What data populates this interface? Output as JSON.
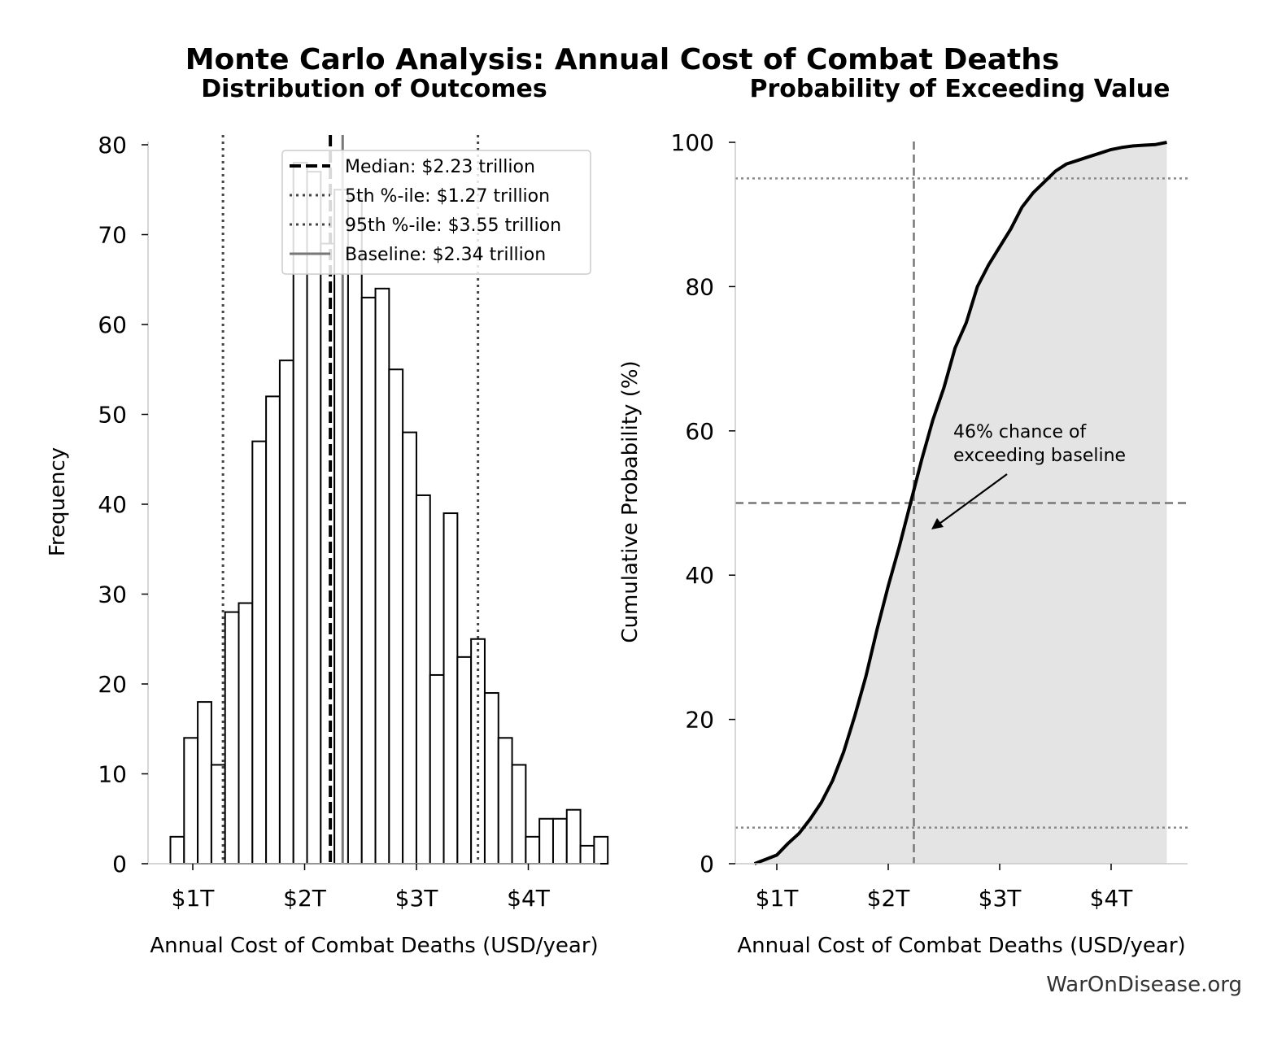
{
  "title": "Monte Carlo Analysis: Annual Cost of Combat Deaths",
  "credit": "WarOnDisease.org",
  "colors": {
    "ink": "#000000",
    "dotted": "#444444",
    "baseline": "#777777",
    "fill": "#e4e4e4",
    "cdf_dashed": "#777777",
    "cdf_dotted": "#8a8a8a"
  },
  "chart_data": [
    {
      "type": "bar",
      "subtitle": "Distribution of Outcomes",
      "xlabel": "Annual Cost of Combat Deaths (USD/year)",
      "ylabel": "Frequency",
      "x_ticks": [
        1,
        2,
        3,
        4
      ],
      "x_tick_labels": [
        "$1T",
        "$2T",
        "$3T",
        "$4T"
      ],
      "y_ticks": [
        0,
        10,
        20,
        30,
        40,
        50,
        60,
        70,
        80
      ],
      "ylim": [
        0,
        80
      ],
      "bin_start": 0.8,
      "bin_width": 0.1222,
      "values": [
        3,
        14,
        18,
        11,
        28,
        29,
        47,
        52,
        56,
        78,
        77,
        69,
        75,
        74,
        63,
        64,
        55,
        48,
        41,
        21,
        39,
        23,
        25,
        19,
        14,
        11,
        3,
        5,
        5,
        6,
        2,
        3
      ],
      "reference_lines": [
        {
          "label": "Median: $2.23 trillion",
          "value": 2.23,
          "style": "dashed"
        },
        {
          "label": "5th %-ile: $1.27 trillion",
          "value": 1.27,
          "style": "dotted"
        },
        {
          "label": "95th %-ile: $3.55 trillion",
          "value": 3.55,
          "style": "dotted"
        },
        {
          "label": "Baseline: $2.34 trillion",
          "value": 2.34,
          "style": "solid"
        }
      ],
      "legend_position": "upper-right",
      "grid": false
    },
    {
      "type": "area",
      "subtitle": "Probability of Exceeding Value",
      "xlabel": "Annual Cost of Combat Deaths (USD/year)",
      "ylabel": "Cumulative Probability (%)",
      "x_ticks": [
        1,
        2,
        3,
        4
      ],
      "x_tick_labels": [
        "$1T",
        "$2T",
        "$3T",
        "$4T"
      ],
      "y_ticks": [
        0,
        20,
        40,
        60,
        80,
        100
      ],
      "ylim": [
        0,
        100
      ],
      "x": [
        0.8,
        1.0,
        1.1,
        1.2,
        1.3,
        1.4,
        1.5,
        1.6,
        1.7,
        1.8,
        1.9,
        2.0,
        2.1,
        2.2,
        2.3,
        2.4,
        2.5,
        2.6,
        2.7,
        2.8,
        2.9,
        3.0,
        3.1,
        3.2,
        3.3,
        3.4,
        3.5,
        3.6,
        3.7,
        3.8,
        3.9,
        4.0,
        4.1,
        4.2,
        4.3,
        4.4,
        4.5
      ],
      "y": [
        0,
        1.2,
        2.8,
        4.2,
        6.2,
        8.5,
        11.5,
        15.5,
        20.5,
        26,
        32.5,
        38.5,
        44,
        50,
        56,
        61.5,
        66,
        71.5,
        75,
        80,
        83,
        85.5,
        88,
        91,
        93,
        94.5,
        96,
        97,
        97.5,
        98,
        98.5,
        99,
        99.3,
        99.5,
        99.6,
        99.7,
        100
      ],
      "reference_lines": [
        {
          "axis": "x",
          "value": 2.23,
          "style": "dashed"
        },
        {
          "axis": "y",
          "value": 50,
          "style": "dashed"
        },
        {
          "axis": "y",
          "value": 5,
          "style": "dotted"
        },
        {
          "axis": "y",
          "value": 95,
          "style": "dotted"
        }
      ],
      "annotation": {
        "lines": [
          "46% chance of",
          "exceeding baseline"
        ],
        "point": [
          2.37,
          46.5
        ],
        "text_at": [
          2.58,
          60
        ]
      },
      "grid": false
    }
  ]
}
